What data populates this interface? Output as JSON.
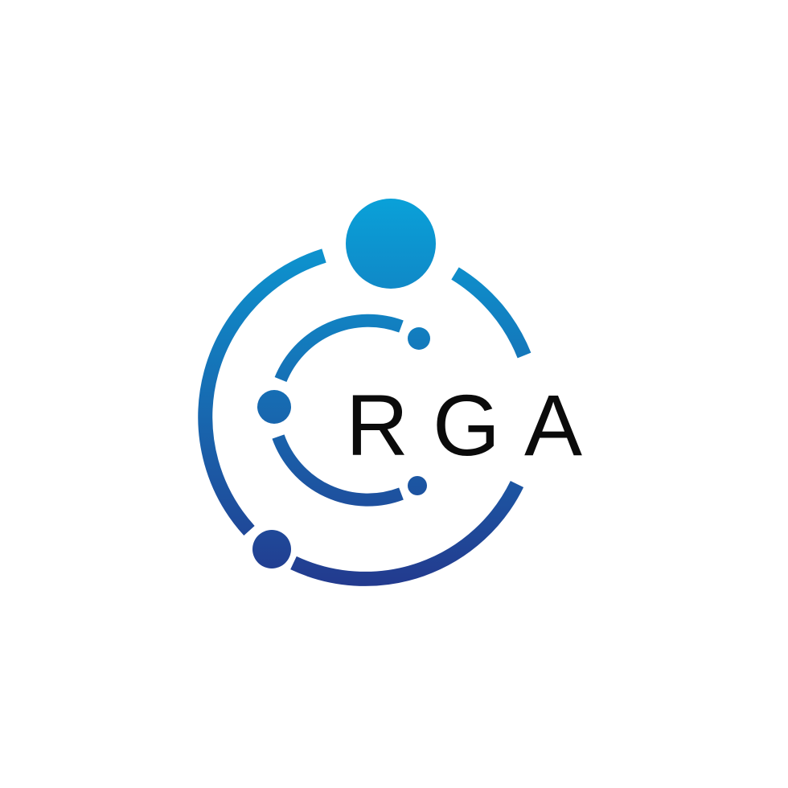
{
  "logo": {
    "wordmark": "RGA",
    "colors": {
      "gradient_top": "#0aa0d8",
      "gradient_bottom": "#233a8e",
      "text": "#0b0b0b",
      "background": "#ffffff"
    }
  }
}
